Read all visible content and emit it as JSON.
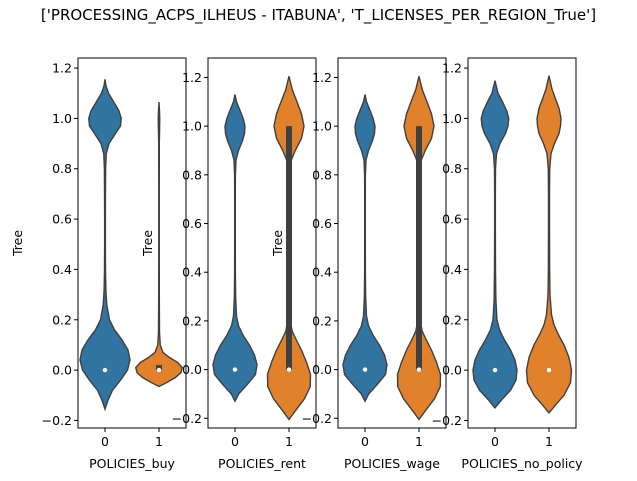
{
  "figure": {
    "title": "['PROCESSING_ACPS_ILHEUS - ITABUNA', 'T_LICENSES_PER_REGION_True']"
  },
  "colors": {
    "blue": "#3274a1",
    "orange": "#e1812c",
    "edge": "#3f3f3f",
    "median": "#ffffff"
  },
  "chart_data": [
    {
      "type": "violin",
      "xlabel": "POLICIES_buy",
      "ylabel": "Tree",
      "categories": [
        "0",
        "1"
      ],
      "ylim": [
        -0.23,
        1.24
      ],
      "yticks": [
        -0.2,
        0.0,
        0.2,
        0.4,
        0.6,
        0.8,
        1.0,
        1.2
      ],
      "ytick_labels": [
        "−0.2",
        "0.0",
        "0.2",
        "0.4",
        "0.6",
        "0.8",
        "1.0",
        "1.2"
      ],
      "violins": [
        {
          "category": "0",
          "color": "blue",
          "range": [
            -0.155,
            1.155
          ],
          "median": 0.0,
          "q1": 0.0,
          "q3": 0.0,
          "profile": [
            [
              -0.155,
              0.0
            ],
            [
              -0.12,
              0.12
            ],
            [
              -0.08,
              0.3
            ],
            [
              -0.04,
              0.62
            ],
            [
              0.0,
              0.9
            ],
            [
              0.04,
              1.0
            ],
            [
              0.08,
              0.92
            ],
            [
              0.12,
              0.68
            ],
            [
              0.16,
              0.38
            ],
            [
              0.2,
              0.18
            ],
            [
              0.26,
              0.07
            ],
            [
              0.32,
              0.035
            ],
            [
              0.4,
              0.02
            ],
            [
              0.5,
              0.015
            ],
            [
              0.6,
              0.015
            ],
            [
              0.7,
              0.018
            ],
            [
              0.8,
              0.025
            ],
            [
              0.86,
              0.05
            ],
            [
              0.9,
              0.16
            ],
            [
              0.94,
              0.42
            ],
            [
              0.97,
              0.62
            ],
            [
              1.0,
              0.65
            ],
            [
              1.03,
              0.56
            ],
            [
              1.07,
              0.32
            ],
            [
              1.1,
              0.14
            ],
            [
              1.13,
              0.04
            ],
            [
              1.155,
              0.0
            ]
          ]
        },
        {
          "category": "1",
          "color": "orange",
          "range": [
            -0.065,
            1.065
          ],
          "median": 0.0,
          "q1": 0.0,
          "q3": 0.02,
          "profile": [
            [
              -0.065,
              0.0
            ],
            [
              -0.05,
              0.3
            ],
            [
              -0.03,
              0.65
            ],
            [
              -0.01,
              0.88
            ],
            [
              0.01,
              0.93
            ],
            [
              0.03,
              0.75
            ],
            [
              0.05,
              0.42
            ],
            [
              0.07,
              0.16
            ],
            [
              0.1,
              0.05
            ],
            [
              0.15,
              0.02
            ],
            [
              0.3,
              0.012
            ],
            [
              0.5,
              0.01
            ],
            [
              0.7,
              0.01
            ],
            [
              0.9,
              0.012
            ],
            [
              0.95,
              0.022
            ],
            [
              1.0,
              0.03
            ],
            [
              1.03,
              0.02
            ],
            [
              1.065,
              0.0
            ]
          ]
        }
      ]
    },
    {
      "type": "violin",
      "xlabel": "POLICIES_rent",
      "ylabel": "Tree",
      "categories": [
        "0",
        "1"
      ],
      "ylim": [
        -0.24,
        1.28
      ],
      "yticks": [
        -0.2,
        0.0,
        0.2,
        0.4,
        0.6,
        0.8,
        1.0,
        1.2
      ],
      "ytick_labels": [
        "−0.2",
        "0.0",
        "0.2",
        "0.4",
        "0.6",
        "0.8",
        "1.0",
        "1.2"
      ],
      "violins": [
        {
          "category": "0",
          "color": "blue",
          "range": [
            -0.13,
            1.13
          ],
          "median": 0.0,
          "q1": 0.0,
          "q3": 0.0,
          "profile": [
            [
              -0.13,
              0.0
            ],
            [
              -0.1,
              0.15
            ],
            [
              -0.06,
              0.5
            ],
            [
              -0.02,
              0.82
            ],
            [
              0.02,
              0.88
            ],
            [
              0.06,
              0.78
            ],
            [
              0.1,
              0.58
            ],
            [
              0.14,
              0.33
            ],
            [
              0.18,
              0.14
            ],
            [
              0.22,
              0.06
            ],
            [
              0.3,
              0.025
            ],
            [
              0.4,
              0.015
            ],
            [
              0.55,
              0.012
            ],
            [
              0.7,
              0.012
            ],
            [
              0.8,
              0.016
            ],
            [
              0.86,
              0.04
            ],
            [
              0.9,
              0.14
            ],
            [
              0.94,
              0.3
            ],
            [
              0.97,
              0.38
            ],
            [
              1.0,
              0.4
            ],
            [
              1.03,
              0.33
            ],
            [
              1.07,
              0.18
            ],
            [
              1.1,
              0.06
            ],
            [
              1.13,
              0.0
            ]
          ]
        },
        {
          "category": "1",
          "color": "orange",
          "range": [
            -0.205,
            1.205
          ],
          "median": 0.0,
          "q1": 0.0,
          "q3": 1.0,
          "profile": [
            [
              -0.205,
              0.0
            ],
            [
              -0.17,
              0.25
            ],
            [
              -0.12,
              0.62
            ],
            [
              -0.07,
              0.85
            ],
            [
              -0.02,
              0.86
            ],
            [
              0.03,
              0.7
            ],
            [
              0.08,
              0.5
            ],
            [
              0.12,
              0.3
            ],
            [
              0.16,
              0.12
            ],
            [
              0.2,
              0.06
            ],
            [
              0.28,
              0.03
            ],
            [
              0.4,
              0.02
            ],
            [
              0.55,
              0.02
            ],
            [
              0.7,
              0.022
            ],
            [
              0.8,
              0.035
            ],
            [
              0.86,
              0.09
            ],
            [
              0.9,
              0.25
            ],
            [
              0.95,
              0.5
            ],
            [
              1.0,
              0.6
            ],
            [
              1.05,
              0.5
            ],
            [
              1.1,
              0.32
            ],
            [
              1.15,
              0.13
            ],
            [
              1.205,
              0.0
            ]
          ]
        }
      ]
    },
    {
      "type": "violin",
      "xlabel": "POLICIES_wage",
      "ylabel": "Tree",
      "categories": [
        "0",
        "1"
      ],
      "ylim": [
        -0.24,
        1.28
      ],
      "yticks": [
        -0.2,
        0.0,
        0.2,
        0.4,
        0.6,
        0.8,
        1.0,
        1.2
      ],
      "ytick_labels": [
        "−0.2",
        "0.0",
        "0.2",
        "0.4",
        "0.6",
        "0.8",
        "1.0",
        "1.2"
      ],
      "violins": [
        {
          "category": "0",
          "color": "blue",
          "range": [
            -0.13,
            1.13
          ],
          "median": 0.0,
          "q1": 0.0,
          "q3": 0.0,
          "profile": [
            [
              -0.13,
              0.0
            ],
            [
              -0.1,
              0.15
            ],
            [
              -0.06,
              0.5
            ],
            [
              -0.02,
              0.82
            ],
            [
              0.02,
              0.88
            ],
            [
              0.06,
              0.78
            ],
            [
              0.1,
              0.58
            ],
            [
              0.14,
              0.33
            ],
            [
              0.18,
              0.14
            ],
            [
              0.22,
              0.06
            ],
            [
              0.3,
              0.025
            ],
            [
              0.4,
              0.015
            ],
            [
              0.55,
              0.012
            ],
            [
              0.7,
              0.012
            ],
            [
              0.8,
              0.016
            ],
            [
              0.86,
              0.04
            ],
            [
              0.9,
              0.14
            ],
            [
              0.94,
              0.3
            ],
            [
              0.97,
              0.38
            ],
            [
              1.0,
              0.4
            ],
            [
              1.03,
              0.33
            ],
            [
              1.07,
              0.18
            ],
            [
              1.1,
              0.06
            ],
            [
              1.13,
              0.0
            ]
          ]
        },
        {
          "category": "1",
          "color": "orange",
          "range": [
            -0.205,
            1.205
          ],
          "median": 0.0,
          "q1": 0.0,
          "q3": 1.0,
          "profile": [
            [
              -0.205,
              0.0
            ],
            [
              -0.17,
              0.25
            ],
            [
              -0.12,
              0.62
            ],
            [
              -0.07,
              0.85
            ],
            [
              -0.02,
              0.86
            ],
            [
              0.03,
              0.7
            ],
            [
              0.08,
              0.5
            ],
            [
              0.12,
              0.3
            ],
            [
              0.16,
              0.12
            ],
            [
              0.2,
              0.06
            ],
            [
              0.28,
              0.03
            ],
            [
              0.4,
              0.02
            ],
            [
              0.55,
              0.02
            ],
            [
              0.7,
              0.022
            ],
            [
              0.8,
              0.035
            ],
            [
              0.86,
              0.09
            ],
            [
              0.9,
              0.25
            ],
            [
              0.95,
              0.5
            ],
            [
              1.0,
              0.6
            ],
            [
              1.05,
              0.5
            ],
            [
              1.1,
              0.32
            ],
            [
              1.15,
              0.13
            ],
            [
              1.205,
              0.0
            ]
          ]
        }
      ]
    },
    {
      "type": "violin",
      "xlabel": "POLICIES_no_policy",
      "ylabel": "",
      "categories": [
        "0",
        "1"
      ],
      "ylim": [
        -0.23,
        1.24
      ],
      "yticks": [
        -0.2,
        0.0,
        0.2,
        0.4,
        0.6,
        0.8,
        1.0,
        1.2
      ],
      "ytick_labels": [
        "−0.2",
        "0.0",
        "0.2",
        "0.4",
        "0.6",
        "0.8",
        "1.0",
        "1.2"
      ],
      "violins": [
        {
          "category": "0",
          "color": "blue",
          "range": [
            -0.15,
            1.15
          ],
          "median": 0.0,
          "q1": 0.0,
          "q3": 0.0,
          "profile": [
            [
              -0.15,
              0.0
            ],
            [
              -0.12,
              0.25
            ],
            [
              -0.08,
              0.62
            ],
            [
              -0.04,
              0.84
            ],
            [
              0.0,
              0.88
            ],
            [
              0.04,
              0.8
            ],
            [
              0.08,
              0.62
            ],
            [
              0.12,
              0.38
            ],
            [
              0.16,
              0.18
            ],
            [
              0.2,
              0.08
            ],
            [
              0.28,
              0.035
            ],
            [
              0.4,
              0.02
            ],
            [
              0.55,
              0.015
            ],
            [
              0.7,
              0.015
            ],
            [
              0.8,
              0.02
            ],
            [
              0.86,
              0.06
            ],
            [
              0.9,
              0.2
            ],
            [
              0.94,
              0.42
            ],
            [
              0.97,
              0.52
            ],
            [
              1.0,
              0.55
            ],
            [
              1.03,
              0.47
            ],
            [
              1.07,
              0.28
            ],
            [
              1.1,
              0.12
            ],
            [
              1.15,
              0.0
            ]
          ]
        },
        {
          "category": "1",
          "color": "orange",
          "range": [
            -0.17,
            1.17
          ],
          "median": 0.0,
          "q1": 0.0,
          "q3": 0.0,
          "profile": [
            [
              -0.17,
              0.0
            ],
            [
              -0.14,
              0.25
            ],
            [
              -0.1,
              0.6
            ],
            [
              -0.05,
              0.86
            ],
            [
              0.0,
              0.9
            ],
            [
              0.05,
              0.8
            ],
            [
              0.1,
              0.6
            ],
            [
              0.14,
              0.38
            ],
            [
              0.18,
              0.2
            ],
            [
              0.22,
              0.1
            ],
            [
              0.3,
              0.04
            ],
            [
              0.4,
              0.025
            ],
            [
              0.55,
              0.02
            ],
            [
              0.7,
              0.02
            ],
            [
              0.8,
              0.028
            ],
            [
              0.86,
              0.08
            ],
            [
              0.9,
              0.22
            ],
            [
              0.94,
              0.4
            ],
            [
              0.97,
              0.46
            ],
            [
              1.0,
              0.48
            ],
            [
              1.04,
              0.4
            ],
            [
              1.08,
              0.25
            ],
            [
              1.12,
              0.11
            ],
            [
              1.17,
              0.0
            ]
          ]
        }
      ]
    }
  ]
}
